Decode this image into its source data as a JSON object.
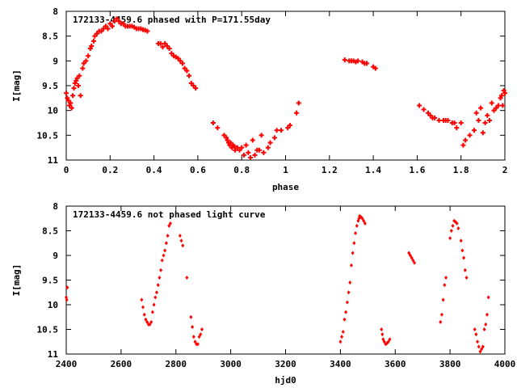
{
  "chart_data": [
    {
      "type": "scatter",
      "title": "172133-4459.6 phased with P=171.55day",
      "xlabel": "phase",
      "ylabel": "I[mag]",
      "xlim": [
        0,
        2
      ],
      "ylim": [
        11,
        8
      ],
      "y_inverted": true,
      "x_ticks": [
        "0",
        "0.2",
        "0.4",
        "0.6",
        "0.8",
        "1",
        "1.2",
        "1.4",
        "1.6",
        "1.8",
        "2"
      ],
      "x_tick_values": [
        0,
        0.2,
        0.4,
        0.6,
        0.8,
        1.0,
        1.2,
        1.4,
        1.6,
        1.8,
        2.0
      ],
      "y_ticks": [
        "8",
        "8.5",
        "9",
        "9.5",
        "10",
        "10.5",
        "11"
      ],
      "y_tick_values": [
        8,
        8.5,
        9,
        9.5,
        10,
        10.5,
        11
      ],
      "marker": "plus",
      "color": "#ff0000",
      "grid": false,
      "points": [
        [
          0.0,
          9.65
        ],
        [
          0.005,
          9.75
        ],
        [
          0.01,
          9.8
        ],
        [
          0.015,
          9.9
        ],
        [
          0.02,
          9.85
        ],
        [
          0.025,
          9.95
        ],
        [
          0.03,
          9.7
        ],
        [
          0.035,
          9.55
        ],
        [
          0.04,
          9.45
        ],
        [
          0.045,
          9.4
        ],
        [
          0.05,
          9.35
        ],
        [
          0.055,
          9.5
        ],
        [
          0.06,
          9.3
        ],
        [
          0.065,
          9.7
        ],
        [
          0.075,
          9.15
        ],
        [
          0.08,
          9.05
        ],
        [
          0.09,
          9.0
        ],
        [
          0.1,
          8.9
        ],
        [
          0.11,
          8.75
        ],
        [
          0.115,
          8.7
        ],
        [
          0.125,
          8.6
        ],
        [
          0.13,
          8.5
        ],
        [
          0.14,
          8.45
        ],
        [
          0.15,
          8.4
        ],
        [
          0.16,
          8.4
        ],
        [
          0.17,
          8.35
        ],
        [
          0.18,
          8.3
        ],
        [
          0.19,
          8.35
        ],
        [
          0.2,
          8.25
        ],
        [
          0.21,
          8.3
        ],
        [
          0.22,
          8.2
        ],
        [
          0.23,
          8.15
        ],
        [
          0.24,
          8.2
        ],
        [
          0.25,
          8.25
        ],
        [
          0.26,
          8.25
        ],
        [
          0.27,
          8.3
        ],
        [
          0.28,
          8.3
        ],
        [
          0.29,
          8.3
        ],
        [
          0.3,
          8.3
        ],
        [
          0.31,
          8.32
        ],
        [
          0.32,
          8.35
        ],
        [
          0.33,
          8.35
        ],
        [
          0.34,
          8.35
        ],
        [
          0.35,
          8.37
        ],
        [
          0.36,
          8.38
        ],
        [
          0.37,
          8.4
        ],
        [
          0.42,
          8.65
        ],
        [
          0.43,
          8.65
        ],
        [
          0.44,
          8.72
        ],
        [
          0.45,
          8.65
        ],
        [
          0.46,
          8.7
        ],
        [
          0.47,
          8.75
        ],
        [
          0.48,
          8.85
        ],
        [
          0.49,
          8.9
        ],
        [
          0.5,
          8.92
        ],
        [
          0.51,
          8.95
        ],
        [
          0.52,
          9.0
        ],
        [
          0.53,
          9.05
        ],
        [
          0.54,
          9.15
        ],
        [
          0.55,
          9.2
        ],
        [
          0.56,
          9.3
        ],
        [
          0.57,
          9.45
        ],
        [
          0.58,
          9.5
        ],
        [
          0.59,
          9.55
        ],
        [
          0.67,
          10.25
        ],
        [
          0.69,
          10.35
        ],
        [
          0.72,
          10.5
        ],
        [
          0.73,
          10.55
        ],
        [
          0.735,
          10.6
        ],
        [
          0.74,
          10.65
        ],
        [
          0.745,
          10.7
        ],
        [
          0.75,
          10.65
        ],
        [
          0.755,
          10.75
        ],
        [
          0.76,
          10.7
        ],
        [
          0.765,
          10.72
        ],
        [
          0.77,
          10.8
        ],
        [
          0.78,
          10.75
        ],
        [
          0.79,
          10.8
        ],
        [
          0.8,
          10.75
        ],
        [
          0.81,
          10.9
        ],
        [
          0.82,
          10.7
        ],
        [
          0.83,
          10.85
        ],
        [
          0.84,
          10.95
        ],
        [
          0.85,
          10.6
        ],
        [
          0.86,
          10.9
        ],
        [
          0.87,
          10.8
        ],
        [
          0.88,
          10.8
        ],
        [
          0.89,
          10.5
        ],
        [
          0.9,
          10.85
        ],
        [
          0.92,
          10.75
        ],
        [
          0.93,
          10.65
        ],
        [
          0.95,
          10.55
        ],
        [
          0.96,
          10.4
        ],
        [
          0.98,
          10.4
        ],
        [
          1.01,
          10.35
        ],
        [
          1.02,
          10.3
        ],
        [
          1.05,
          10.05
        ],
        [
          1.06,
          9.85
        ],
        [
          1.27,
          8.98
        ],
        [
          1.29,
          9.0
        ],
        [
          1.3,
          9.0
        ],
        [
          1.31,
          9.0
        ],
        [
          1.32,
          9.02
        ],
        [
          1.33,
          9.0
        ],
        [
          1.35,
          9.02
        ],
        [
          1.36,
          9.05
        ],
        [
          1.37,
          9.05
        ],
        [
          1.4,
          9.12
        ],
        [
          1.41,
          9.15
        ],
        [
          1.61,
          9.9
        ],
        [
          1.63,
          9.98
        ],
        [
          1.65,
          10.05
        ],
        [
          1.66,
          10.1
        ],
        [
          1.67,
          10.15
        ],
        [
          1.68,
          10.15
        ],
        [
          1.7,
          10.2
        ],
        [
          1.72,
          10.2
        ],
        [
          1.73,
          10.2
        ],
        [
          1.74,
          10.2
        ],
        [
          1.76,
          10.25
        ],
        [
          1.77,
          10.25
        ],
        [
          1.78,
          10.35
        ],
        [
          1.8,
          10.25
        ],
        [
          1.81,
          10.7
        ],
        [
          1.82,
          10.6
        ],
        [
          1.84,
          10.5
        ],
        [
          1.86,
          10.4
        ],
        [
          1.87,
          10.05
        ],
        [
          1.88,
          10.2
        ],
        [
          1.89,
          9.95
        ],
        [
          1.9,
          10.45
        ],
        [
          1.91,
          10.25
        ],
        [
          1.92,
          10.1
        ],
        [
          1.93,
          10.2
        ],
        [
          1.94,
          9.85
        ],
        [
          1.95,
          10.0
        ],
        [
          1.96,
          9.95
        ],
        [
          1.97,
          9.9
        ],
        [
          1.98,
          9.75
        ],
        [
          1.985,
          9.7
        ],
        [
          1.99,
          9.9
        ],
        [
          1.995,
          9.6
        ],
        [
          2.0,
          9.65
        ]
      ]
    },
    {
      "type": "scatter",
      "title": "172133-4459.6 not phased light curve",
      "xlabel": "hjd0",
      "ylabel": "I[mag]",
      "xlim": [
        2400,
        4000
      ],
      "ylim": [
        11,
        8
      ],
      "y_inverted": true,
      "x_ticks": [
        "2400",
        "2600",
        "2800",
        "3000",
        "3200",
        "3400",
        "3600",
        "3800",
        "4000"
      ],
      "x_tick_values": [
        2400,
        2600,
        2800,
        3000,
        3200,
        3400,
        3600,
        3800,
        4000
      ],
      "y_ticks": [
        "8",
        "8.5",
        "9",
        "9.5",
        "10",
        "10.5",
        "11"
      ],
      "y_tick_values": [
        8,
        8.5,
        9,
        9.5,
        10,
        10.5,
        11
      ],
      "marker": "diamond",
      "color": "#ff0000",
      "grid": false,
      "points": [
        [
          2400,
          9.85
        ],
        [
          2402,
          9.9
        ],
        [
          2404,
          9.65
        ],
        [
          2675,
          9.9
        ],
        [
          2680,
          10.05
        ],
        [
          2685,
          10.2
        ],
        [
          2690,
          10.3
        ],
        [
          2695,
          10.35
        ],
        [
          2700,
          10.4
        ],
        [
          2705,
          10.4
        ],
        [
          2710,
          10.35
        ],
        [
          2715,
          10.15
        ],
        [
          2720,
          10.0
        ],
        [
          2725,
          9.85
        ],
        [
          2730,
          9.75
        ],
        [
          2735,
          9.6
        ],
        [
          2740,
          9.45
        ],
        [
          2745,
          9.3
        ],
        [
          2750,
          9.1
        ],
        [
          2755,
          9.0
        ],
        [
          2760,
          8.9
        ],
        [
          2765,
          8.75
        ],
        [
          2770,
          8.6
        ],
        [
          2775,
          8.4
        ],
        [
          2780,
          8.35
        ],
        [
          2815,
          8.6
        ],
        [
          2820,
          8.7
        ],
        [
          2825,
          8.8
        ],
        [
          2840,
          9.45
        ],
        [
          2855,
          10.25
        ],
        [
          2860,
          10.45
        ],
        [
          2865,
          10.65
        ],
        [
          2870,
          10.75
        ],
        [
          2875,
          10.8
        ],
        [
          2880,
          10.8
        ],
        [
          2885,
          10.65
        ],
        [
          2890,
          10.6
        ],
        [
          2895,
          10.5
        ],
        [
          3400,
          10.75
        ],
        [
          3405,
          10.65
        ],
        [
          3410,
          10.55
        ],
        [
          3415,
          10.3
        ],
        [
          3420,
          10.15
        ],
        [
          3425,
          9.95
        ],
        [
          3430,
          9.75
        ],
        [
          3435,
          9.55
        ],
        [
          3440,
          9.2
        ],
        [
          3445,
          8.95
        ],
        [
          3450,
          8.75
        ],
        [
          3455,
          8.55
        ],
        [
          3460,
          8.4
        ],
        [
          3465,
          8.3
        ],
        [
          3468,
          8.25
        ],
        [
          3470,
          8.2
        ],
        [
          3475,
          8.22
        ],
        [
          3480,
          8.25
        ],
        [
          3485,
          8.3
        ],
        [
          3490,
          8.35
        ],
        [
          3550,
          10.5
        ],
        [
          3553,
          10.6
        ],
        [
          3556,
          10.7
        ],
        [
          3560,
          10.75
        ],
        [
          3565,
          10.8
        ],
        [
          3570,
          10.78
        ],
        [
          3575,
          10.75
        ],
        [
          3580,
          10.7
        ],
        [
          3650,
          8.95
        ],
        [
          3655,
          9.0
        ],
        [
          3660,
          9.05
        ],
        [
          3665,
          9.1
        ],
        [
          3670,
          9.15
        ],
        [
          3765,
          10.35
        ],
        [
          3770,
          10.2
        ],
        [
          3775,
          9.9
        ],
        [
          3780,
          9.6
        ],
        [
          3785,
          9.45
        ],
        [
          3800,
          8.65
        ],
        [
          3805,
          8.5
        ],
        [
          3810,
          8.4
        ],
        [
          3815,
          8.3
        ],
        [
          3820,
          8.32
        ],
        [
          3825,
          8.35
        ],
        [
          3830,
          8.45
        ],
        [
          3840,
          8.7
        ],
        [
          3845,
          8.9
        ],
        [
          3850,
          9.05
        ],
        [
          3855,
          9.3
        ],
        [
          3860,
          9.45
        ],
        [
          3890,
          10.5
        ],
        [
          3895,
          10.6
        ],
        [
          3900,
          10.75
        ],
        [
          3905,
          10.85
        ],
        [
          3910,
          10.95
        ],
        [
          3915,
          10.9
        ],
        [
          3920,
          10.85
        ],
        [
          3925,
          10.5
        ],
        [
          3930,
          10.4
        ],
        [
          3935,
          10.2
        ],
        [
          3940,
          9.85
        ]
      ]
    }
  ]
}
